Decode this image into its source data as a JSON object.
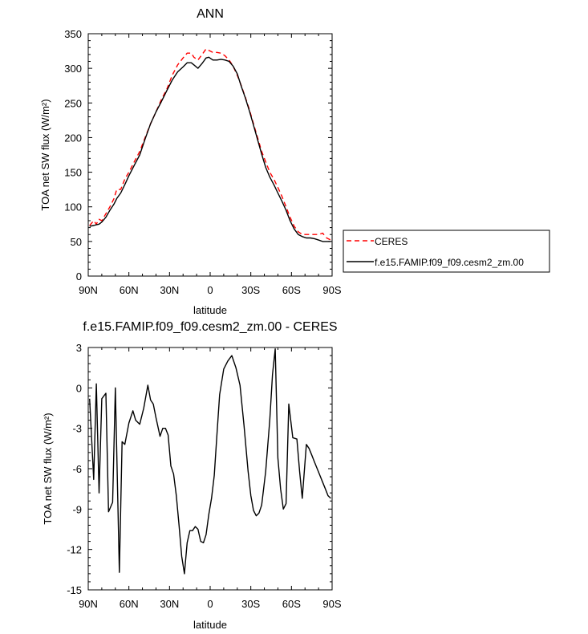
{
  "chart_data": [
    {
      "type": "line",
      "title": "ANN",
      "xlabel": "latitude",
      "ylabel": "TOA net SW flux (W/m²)",
      "xlim": [
        90,
        -90
      ],
      "ylim": [
        0,
        350
      ],
      "x_ticks": [
        {
          "value": 90,
          "label": "90N"
        },
        {
          "value": 60,
          "label": "60N"
        },
        {
          "value": 30,
          "label": "30N"
        },
        {
          "value": 0,
          "label": "0"
        },
        {
          "value": -30,
          "label": "30S"
        },
        {
          "value": -60,
          "label": "60S"
        },
        {
          "value": -90,
          "label": "90S"
        }
      ],
      "y_ticks": [
        {
          "value": 0,
          "label": "0"
        },
        {
          "value": 50,
          "label": "50"
        },
        {
          "value": 100,
          "label": "100"
        },
        {
          "value": 150,
          "label": "150"
        },
        {
          "value": 200,
          "label": "200"
        },
        {
          "value": 250,
          "label": "250"
        },
        {
          "value": 300,
          "label": "300"
        },
        {
          "value": 350,
          "label": "350"
        }
      ],
      "legend_position": "right",
      "series": [
        {
          "name": "CERES",
          "color": "#ff0000",
          "dash": true,
          "x": [
            89,
            86,
            84,
            82,
            80,
            77,
            74,
            71,
            69,
            66,
            63,
            60,
            56,
            52,
            48,
            44,
            40,
            36,
            32,
            28,
            24,
            20,
            17,
            14,
            12,
            9,
            6,
            3,
            1,
            -2,
            -5,
            -8,
            -11,
            -14,
            -17,
            -20,
            -23,
            -26,
            -29,
            -32,
            -35,
            -38,
            -41,
            -44,
            -47,
            -50,
            -53,
            -56,
            -59,
            -62,
            -65,
            -68,
            -71,
            -74,
            -77,
            -80,
            -83,
            -86,
            -89
          ],
          "y": [
            73,
            80,
            75,
            82,
            80,
            90,
            100,
            112,
            125,
            125,
            140,
            150,
            165,
            180,
            200,
            220,
            237,
            255,
            270,
            290,
            305,
            315,
            322,
            322,
            316,
            312,
            320,
            328,
            326,
            323,
            323,
            322,
            318,
            312,
            303,
            290,
            275,
            258,
            240,
            220,
            200,
            180,
            165,
            150,
            140,
            128,
            115,
            100,
            85,
            72,
            64,
            60,
            60,
            60,
            60,
            60,
            62,
            55,
            52
          ]
        },
        {
          "name": "f.e15.FAMIP.f09_f09.cesm2_zm.00",
          "color": "#000000",
          "dash": false,
          "x": [
            89,
            86,
            84,
            82,
            80,
            77,
            74,
            71,
            69,
            66,
            63,
            60,
            56,
            52,
            48,
            44,
            40,
            36,
            32,
            28,
            24,
            20,
            17,
            14,
            12,
            9,
            6,
            3,
            1,
            -2,
            -5,
            -8,
            -11,
            -14,
            -17,
            -20,
            -23,
            -26,
            -29,
            -32,
            -35,
            -38,
            -41,
            -44,
            -47,
            -50,
            -53,
            -56,
            -59,
            -62,
            -65,
            -68,
            -71,
            -74,
            -77,
            -80,
            -83,
            -86,
            -89
          ],
          "y": [
            72,
            73,
            74,
            75,
            78,
            85,
            95,
            104,
            112,
            120,
            132,
            145,
            160,
            175,
            198,
            220,
            237,
            252,
            268,
            283,
            295,
            302,
            308,
            308,
            305,
            300,
            307,
            315,
            316,
            312,
            312,
            313,
            312,
            310,
            303,
            292,
            274,
            257,
            238,
            218,
            197,
            176,
            157,
            143,
            132,
            120,
            108,
            95,
            80,
            68,
            60,
            57,
            55,
            55,
            54,
            52,
            50,
            50,
            50
          ]
        }
      ]
    },
    {
      "type": "line",
      "title": "f.e15.FAMIP.f09_f09.cesm2_zm.00 - CERES",
      "xlabel": "latitude",
      "ylabel": "TOA net SW flux (W/m²)",
      "xlim": [
        90,
        -90
      ],
      "ylim": [
        -15,
        3
      ],
      "x_ticks": [
        {
          "value": 90,
          "label": "90N"
        },
        {
          "value": 60,
          "label": "60N"
        },
        {
          "value": 30,
          "label": "30N"
        },
        {
          "value": 0,
          "label": "0"
        },
        {
          "value": -30,
          "label": "30S"
        },
        {
          "value": -60,
          "label": "60S"
        },
        {
          "value": -90,
          "label": "90S"
        }
      ],
      "y_ticks": [
        {
          "value": 3,
          "label": "3"
        },
        {
          "value": 0,
          "label": "0"
        },
        {
          "value": -3,
          "label": "-3"
        },
        {
          "value": -6,
          "label": "-6"
        },
        {
          "value": -9,
          "label": "-9"
        },
        {
          "value": -12,
          "label": "-12"
        },
        {
          "value": -15,
          "label": "-15"
        }
      ],
      "series": [
        {
          "color": "#000000",
          "dash": false,
          "x": [
            89,
            86,
            84,
            82,
            80,
            77,
            75,
            72,
            70,
            67,
            65,
            63,
            60,
            57,
            55,
            52,
            49,
            46,
            44,
            42,
            40,
            37,
            35,
            33,
            31,
            29,
            27,
            25,
            23,
            21,
            19,
            17,
            15,
            13,
            11,
            9,
            7,
            5,
            3,
            1,
            -1,
            -3,
            -5,
            -7,
            -10,
            -13,
            -16,
            -19,
            -22,
            -25,
            -28,
            -30,
            -32,
            -34,
            -36,
            -38,
            -41,
            -44,
            -46,
            -48,
            -50,
            -52,
            -54,
            -56,
            -58,
            -61,
            -64,
            -66,
            -68,
            -71,
            -73,
            -75,
            -77,
            -79,
            -81,
            -83,
            -85,
            -87,
            -89
          ],
          "y": [
            -0.8,
            -6.8,
            0.3,
            -7.8,
            -0.8,
            -0.4,
            -9.2,
            -8.5,
            0,
            -13.7,
            -4,
            -4.2,
            -2.6,
            -1.7,
            -2.4,
            -2.7,
            -1.5,
            0.2,
            -0.9,
            -1.2,
            -2.2,
            -3.6,
            -3,
            -3,
            -3.5,
            -5.8,
            -6.4,
            -8,
            -10.2,
            -12.5,
            -13.8,
            -11.5,
            -10.6,
            -10.6,
            -10.3,
            -10.5,
            -11.4,
            -11.5,
            -10.9,
            -9.4,
            -8.2,
            -6.5,
            -3.5,
            -0.5,
            1.4,
            2,
            2.4,
            1.5,
            0.2,
            -2.8,
            -6.2,
            -8,
            -9.1,
            -9.5,
            -9.3,
            -8.7,
            -6.2,
            -2.4,
            1,
            2.9,
            -5.2,
            -7.5,
            -9,
            -8.6,
            -1.2,
            -3.7,
            -3.8,
            -6.2,
            -8.2,
            -4.2,
            -4.5,
            -5,
            -5.5,
            -6,
            -6.5,
            -7,
            -7.5,
            -8,
            -8.2
          ]
        }
      ]
    }
  ]
}
